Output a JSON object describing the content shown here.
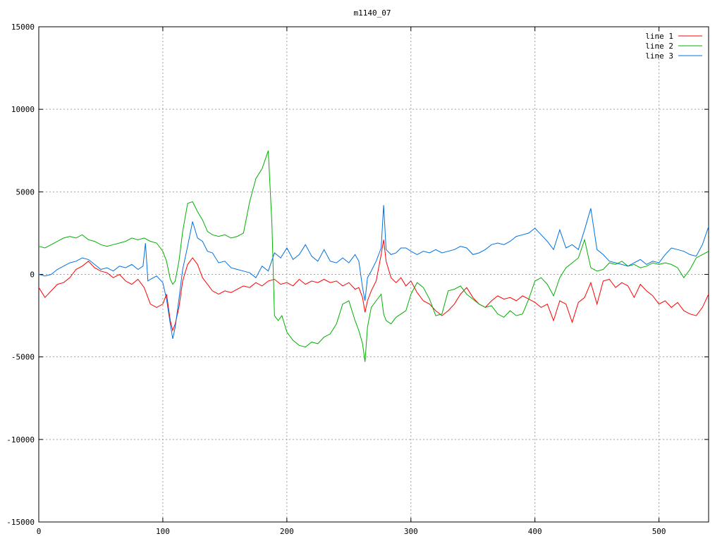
{
  "chart_data": {
    "type": "line",
    "title": "m1140_07",
    "xlabel": "",
    "ylabel": "",
    "xlim": [
      0,
      540
    ],
    "ylim": [
      -15000,
      15000
    ],
    "x_ticks": [
      0,
      100,
      200,
      300,
      400,
      500
    ],
    "y_ticks": [
      -15000,
      -10000,
      -5000,
      0,
      5000,
      10000,
      15000
    ],
    "grid": true,
    "legend_position": "top-right",
    "series": [
      {
        "name": "line 1",
        "color": "#ff0000",
        "x": [
          0,
          5,
          10,
          15,
          20,
          25,
          30,
          35,
          40,
          45,
          50,
          55,
          60,
          65,
          70,
          75,
          80,
          85,
          90,
          95,
          100,
          103,
          106,
          108,
          110,
          113,
          116,
          120,
          124,
          128,
          132,
          136,
          140,
          145,
          150,
          155,
          160,
          165,
          170,
          175,
          180,
          185,
          190,
          195,
          200,
          205,
          210,
          215,
          220,
          225,
          230,
          235,
          240,
          245,
          250,
          255,
          258,
          261,
          263,
          265,
          268,
          272,
          276,
          278,
          280,
          284,
          288,
          292,
          296,
          300,
          305,
          310,
          315,
          320,
          325,
          330,
          335,
          340,
          345,
          350,
          355,
          360,
          365,
          370,
          375,
          380,
          385,
          390,
          395,
          400,
          405,
          410,
          415,
          420,
          425,
          430,
          435,
          440,
          445,
          450,
          455,
          460,
          465,
          470,
          475,
          480,
          485,
          490,
          495,
          500,
          505,
          510,
          515,
          520,
          525,
          530,
          535,
          540
        ],
        "y": [
          -800,
          -1400,
          -1000,
          -600,
          -500,
          -200,
          300,
          500,
          800,
          400,
          200,
          100,
          -200,
          0,
          -400,
          -600,
          -300,
          -800,
          -1800,
          -2000,
          -1800,
          -1200,
          -2800,
          -3400,
          -3000,
          -2000,
          -400,
          600,
          1000,
          600,
          -200,
          -600,
          -1000,
          -1200,
          -1000,
          -1100,
          -900,
          -700,
          -800,
          -500,
          -700,
          -400,
          -300,
          -600,
          -500,
          -700,
          -300,
          -600,
          -400,
          -500,
          -300,
          -500,
          -400,
          -700,
          -500,
          -900,
          -800,
          -1400,
          -2300,
          -1600,
          -1000,
          -400,
          1200,
          2100,
          800,
          -200,
          -500,
          -200,
          -700,
          -400,
          -1100,
          -1600,
          -1800,
          -2200,
          -2500,
          -2200,
          -1800,
          -1200,
          -800,
          -1400,
          -1800,
          -2000,
          -1600,
          -1300,
          -1500,
          -1400,
          -1600,
          -1300,
          -1500,
          -1700,
          -2000,
          -1800,
          -2800,
          -1600,
          -1800,
          -2900,
          -1700,
          -1400,
          -500,
          -1800,
          -400,
          -300,
          -800,
          -500,
          -700,
          -1400,
          -600,
          -1000,
          -1300,
          -1800,
          -1600,
          -2000,
          -1700,
          -2200,
          -2400,
          -2500,
          -2000,
          -1200
        ],
        "values_note": ""
      },
      {
        "name": "line 2",
        "color": "#00b000",
        "x": [
          0,
          5,
          10,
          15,
          20,
          25,
          30,
          35,
          40,
          45,
          50,
          55,
          60,
          65,
          70,
          75,
          80,
          85,
          90,
          95,
          100,
          103,
          106,
          108,
          110,
          113,
          116,
          120,
          124,
          128,
          132,
          136,
          140,
          145,
          150,
          155,
          160,
          165,
          170,
          175,
          180,
          185,
          188,
          190,
          193,
          196,
          200,
          205,
          210,
          215,
          220,
          225,
          230,
          235,
          240,
          245,
          250,
          255,
          258,
          261,
          263,
          265,
          268,
          272,
          276,
          278,
          280,
          284,
          288,
          292,
          296,
          300,
          305,
          310,
          315,
          320,
          325,
          330,
          335,
          340,
          345,
          350,
          355,
          360,
          365,
          370,
          375,
          380,
          385,
          390,
          395,
          400,
          405,
          410,
          415,
          420,
          425,
          430,
          435,
          440,
          445,
          450,
          455,
          460,
          465,
          470,
          475,
          480,
          485,
          490,
          495,
          500,
          505,
          510,
          515,
          520,
          525,
          530,
          535,
          540
        ],
        "y": [
          1700,
          1600,
          1800,
          2000,
          2200,
          2300,
          2200,
          2400,
          2100,
          2000,
          1800,
          1700,
          1800,
          1900,
          2000,
          2200,
          2100,
          2200,
          2000,
          1900,
          1400,
          800,
          -300,
          -600,
          -400,
          800,
          2600,
          4300,
          4400,
          3800,
          3300,
          2600,
          2400,
          2300,
          2400,
          2200,
          2300,
          2500,
          4400,
          5800,
          6400,
          7500,
          3000,
          -2500,
          -2800,
          -2500,
          -3500,
          -4000,
          -4300,
          -4400,
          -4100,
          -4200,
          -3800,
          -3600,
          -3000,
          -1800,
          -1600,
          -2800,
          -3400,
          -4200,
          -5300,
          -3200,
          -2000,
          -1600,
          -1200,
          -2400,
          -2800,
          -3000,
          -2600,
          -2400,
          -2200,
          -1200,
          -500,
          -800,
          -1500,
          -2500,
          -2400,
          -1000,
          -900,
          -700,
          -1200,
          -1500,
          -1800,
          -2000,
          -1900,
          -2400,
          -2600,
          -2200,
          -2500,
          -2400,
          -1500,
          -400,
          -200,
          -600,
          -1300,
          -200,
          400,
          700,
          1000,
          2100,
          400,
          200,
          300,
          700,
          600,
          800,
          500,
          600,
          400,
          500,
          700,
          600,
          700,
          600,
          400,
          -200,
          300,
          1000,
          1200,
          1400
        ],
        "values_note": ""
      },
      {
        "name": "line 3",
        "color": "#0070e0",
        "x": [
          0,
          5,
          10,
          15,
          20,
          25,
          30,
          35,
          40,
          45,
          50,
          55,
          60,
          65,
          70,
          75,
          80,
          84,
          86,
          88,
          90,
          95,
          100,
          103,
          106,
          108,
          110,
          113,
          116,
          120,
          124,
          128,
          132,
          136,
          140,
          145,
          150,
          155,
          160,
          165,
          170,
          175,
          180,
          185,
          190,
          195,
          200,
          205,
          210,
          215,
          220,
          225,
          230,
          235,
          240,
          245,
          250,
          255,
          258,
          261,
          263,
          265,
          268,
          272,
          276,
          278,
          280,
          284,
          288,
          292,
          296,
          300,
          305,
          310,
          315,
          320,
          325,
          330,
          335,
          340,
          345,
          350,
          355,
          360,
          365,
          370,
          375,
          380,
          385,
          390,
          395,
          400,
          405,
          410,
          415,
          420,
          425,
          430,
          435,
          440,
          445,
          450,
          455,
          460,
          465,
          470,
          475,
          480,
          485,
          490,
          495,
          500,
          505,
          510,
          515,
          520,
          525,
          530,
          535,
          540
        ],
        "y": [
          0,
          -100,
          0,
          300,
          500,
          700,
          800,
          1000,
          900,
          600,
          300,
          400,
          200,
          500,
          400,
          600,
          300,
          500,
          1900,
          -400,
          -300,
          -100,
          -500,
          -1500,
          -3000,
          -3900,
          -3200,
          -1500,
          300,
          1700,
          3200,
          2200,
          2000,
          1400,
          1300,
          700,
          800,
          400,
          300,
          200,
          100,
          -200,
          500,
          200,
          1300,
          1000,
          1600,
          900,
          1200,
          1800,
          1100,
          800,
          1500,
          800,
          700,
          1000,
          700,
          1200,
          800,
          -800,
          -1600,
          -200,
          200,
          800,
          1600,
          4200,
          1500,
          1200,
          1300,
          1600,
          1600,
          1400,
          1200,
          1400,
          1300,
          1500,
          1300,
          1400,
          1500,
          1700,
          1600,
          1200,
          1300,
          1500,
          1800,
          1900,
          1800,
          2000,
          2300,
          2400,
          2500,
          2800,
          2400,
          2000,
          1500,
          2700,
          1600,
          1800,
          1500,
          2700,
          4000,
          1500,
          1200,
          800,
          700,
          600,
          500,
          700,
          900,
          600,
          800,
          700,
          1200,
          1600,
          1500,
          1400,
          1200,
          1100,
          1800,
          2900
        ],
        "values_note": ""
      }
    ]
  }
}
